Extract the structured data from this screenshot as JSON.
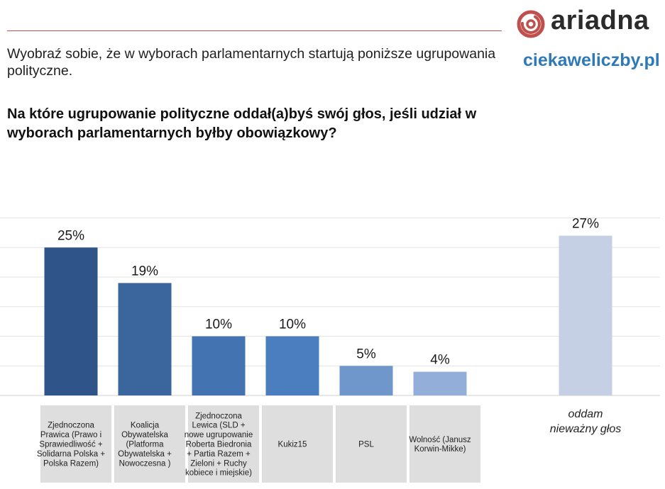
{
  "brand": {
    "logo_text": "ariadna",
    "logo_icon": "ariadna-spiral-icon",
    "site": "ciekaweliczby.pl",
    "accent": "#c0504d",
    "site_color": "#2e7ab8"
  },
  "intro": "Wyobraź sobie, że w wyborach parlamentarnych startują poniższe ugrupowania polityczne.",
  "question": "Na które ugrupowanie polityczne oddał(a)byś swój głos, jeśli udział w wyborach parlamentarnych byłby obowiązkowy?",
  "chart_data": {
    "type": "bar",
    "unit": "%",
    "ylim": [
      0,
      30
    ],
    "grid": true,
    "legend": "none",
    "categories": [
      [
        "Zjednoczona",
        "Prawica (Prawo i",
        "Sprawiedliwość +",
        "Solidarna Polska +",
        "Polska Razem)"
      ],
      [
        "Koalicja",
        "Obywatelska",
        "(Platforma",
        "Obywatelska +",
        "Nowoczesna )"
      ],
      [
        "Zjednoczona",
        "Lewica (SLD +",
        "nowe ugrupowanie",
        "Roberta Biedronia",
        "+ Partia Razem +",
        "Zieloni + Ruchy",
        "kobiece i miejskie)"
      ],
      [
        "Kukiz15"
      ],
      [
        "PSL"
      ],
      [
        "Wolność (Janusz",
        "Korwin-Mikke)"
      ]
    ],
    "values": [
      25,
      19,
      10,
      10,
      5,
      4
    ],
    "value_labels": [
      "25%",
      "19%",
      "10%",
      "10%",
      "5%",
      "4%"
    ],
    "colors": [
      "#2f5489",
      "#3b669d",
      "#4373b0",
      "#4a7ebf",
      "#6f97cc",
      "#93afd9"
    ],
    "extra": {
      "label": [
        "oddam",
        "nieważny głos"
      ],
      "value": 27,
      "value_label": "27%",
      "color": "#c6d0e4"
    }
  }
}
